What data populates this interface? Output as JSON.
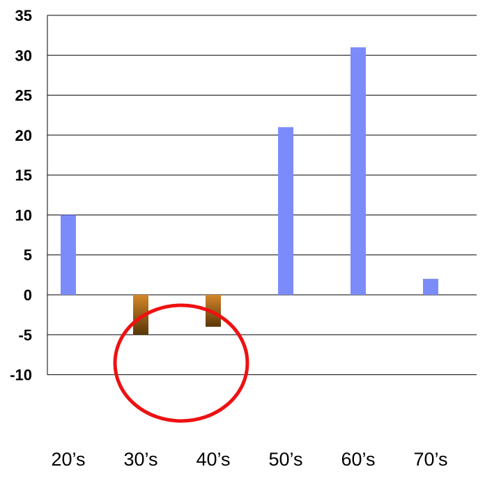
{
  "chart_data": {
    "type": "bar",
    "categories": [
      "20’s",
      "30’s",
      "40’s",
      "50’s",
      "60’s",
      "70’s"
    ],
    "values": [
      10,
      -5,
      -4,
      21,
      31,
      2
    ],
    "ylim": [
      -10,
      35
    ],
    "yticks": [
      "35",
      "30",
      "25",
      "20",
      "15",
      "10",
      "5",
      "0",
      "-5",
      "-10"
    ],
    "ytick_values": [
      35,
      30,
      25,
      20,
      15,
      10,
      5,
      0,
      -5,
      -10
    ],
    "grid": true,
    "legend": "none",
    "colors": {
      "positive": "#7b8cfa",
      "negative_top": "#d4862a",
      "negative_bottom": "#5a3608",
      "highlight_ellipse": "#ee1111",
      "grid": "#000000"
    },
    "annotations": [
      {
        "shape": "ellipse",
        "target_categories": [
          "30’s",
          "40’s"
        ],
        "color": "#ee1111"
      }
    ]
  }
}
